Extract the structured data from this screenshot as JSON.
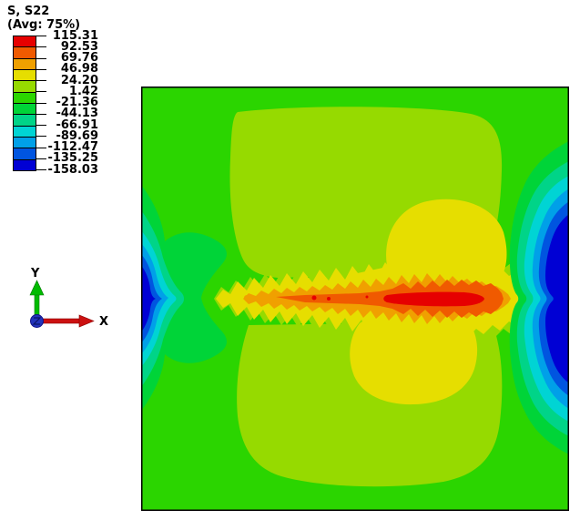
{
  "legend": {
    "title": "S, S22",
    "subtitle": "(Avg: 75%)",
    "values": [
      "115.31",
      "92.53",
      "69.76",
      "46.98",
      "24.20",
      "1.42",
      "-21.36",
      "-44.13",
      "-66.91",
      "-89.69",
      "-112.47",
      "-135.25",
      "-158.03"
    ],
    "colors": [
      "#E60000",
      "#F05A00",
      "#F0A000",
      "#E6DE00",
      "#96DA00",
      "#2BD500",
      "#00D438",
      "#00D488",
      "#00D4D4",
      "#00A0E8",
      "#0055E0",
      "#0000D4"
    ]
  },
  "triad": {
    "x_label": "X",
    "y_label": "Y",
    "x_arrow_color": "#CC1111",
    "y_arrow_color": "#00BB00",
    "origin_color": "#2233BB"
  },
  "plot": {
    "border_color": "#000000",
    "background_band": "#2BD500"
  },
  "chart_data": {
    "type": "heatmap",
    "title": "S, S22",
    "subtitle": "(Avg: 75%)",
    "field": "Stress component S22, element averaging 75%",
    "legend_levels": [
      115.31,
      92.53,
      69.76,
      46.98,
      24.2,
      1.42,
      -21.36,
      -44.13,
      -66.91,
      -89.69,
      -112.47,
      -135.25,
      -158.03
    ],
    "legend_colors_max_to_min": [
      "#E60000",
      "#F05A00",
      "#F0A000",
      "#E6DE00",
      "#96DA00",
      "#2BD500",
      "#00D438",
      "#00D488",
      "#00D4D4",
      "#00A0E8",
      "#0055E0",
      "#0000D4"
    ],
    "legend_position": "top-left",
    "axes": {
      "x": "X",
      "y": "Y"
    },
    "domain_shape": "square",
    "features": [
      {
        "region": "far field",
        "value_band": "-21.36 to 1.42",
        "color": "#2BD500"
      },
      {
        "region": "horizontal midline band right-of-center",
        "value_band": "92.53 to 115.31 peak",
        "color": "#E60000"
      },
      {
        "region": "sawtooth yellow/orange halo around midline crack band",
        "value_band": "24.20 to 92.53"
      },
      {
        "region": "left edge midpoint pocket",
        "value_band": "-135.25 to -158.03",
        "color": "#0000D4"
      },
      {
        "region": "right edge midpoint large pocket",
        "value_band": "-135.25 to -158.03",
        "color": "#0000D4"
      },
      {
        "region": "upper and lower interior lobes",
        "value_band": "1.42 to 24.20",
        "color": "#96DA00"
      }
    ]
  }
}
